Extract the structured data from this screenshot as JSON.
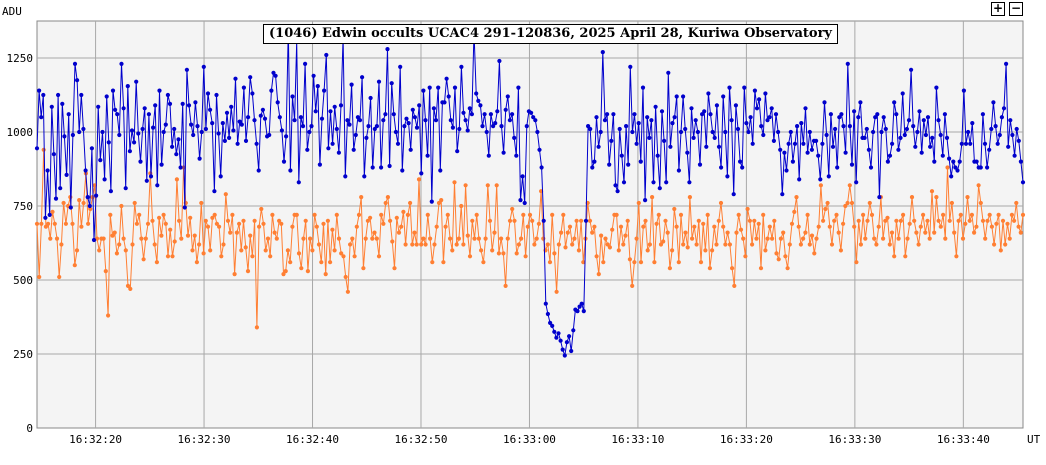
{
  "controls": {
    "zoom_in": "+",
    "zoom_out": "−"
  },
  "chart_data": {
    "type": "line",
    "title": "(1046) Edwin occults UCAC4 291-120836, 2025 April 28, Kuriwa Observatory",
    "ylabel": "ADU",
    "xlabel": "UT",
    "ylim": [
      0,
      1375
    ],
    "yticks": [
      0,
      250,
      500,
      750,
      1000,
      1250
    ],
    "x_start": "16:32:14.6",
    "x_end": "16:33:45.5",
    "xticks": [
      "16:32:20",
      "16:32:30",
      "16:32:40",
      "16:32:50",
      "16:33:00",
      "16:33:10",
      "16:33:20",
      "16:33:30",
      "16:33:40"
    ],
    "grid": true,
    "series": [
      {
        "name": "",
        "color": "#0000cc",
        "values": [
          945,
          1140,
          1050,
          1125,
          710,
          870,
          720,
          1085,
          925,
          775,
          1125,
          810,
          1095,
          985,
          855,
          1060,
          745,
          990,
          1230,
          1175,
          1000,
          1125,
          1010,
          870,
          780,
          750,
          945,
          635,
          785,
          1085,
          905,
          1000,
          840,
          1120,
          965,
          800,
          1140,
          1075,
          1060,
          990,
          1230,
          1080,
          810,
          1155,
          935,
          1005,
          965,
          1170,
          995,
          900,
          1010,
          1080,
          835,
          1060,
          850,
          1015,
          1090,
          820,
          1140,
          890,
          1000,
          1025,
          1125,
          1095,
          950,
          1010,
          925,
          975,
          880,
          1095,
          745,
          1210,
          1090,
          1025,
          990,
          1100,
          1020,
          910,
          1000,
          1220,
          1010,
          1130,
          1075,
          1030,
          800,
          1125,
          995,
          850,
          1030,
          970,
          1065,
          980,
          1085,
          1005,
          1180,
          960,
          1035,
          1025,
          1150,
          970,
          1050,
          1185,
          1130,
          1040,
          960,
          870,
          1055,
          1075,
          1045,
          985,
          990,
          1140,
          1200,
          1190,
          1100,
          1050,
          1005,
          900,
          985,
          1350,
          870,
          1120,
          1040,
          1305,
          830,
          1050,
          1020,
          1230,
          940,
          1000,
          1020,
          1190,
          1070,
          1155,
          890,
          1045,
          1140,
          1260,
          945,
          1070,
          960,
          1085,
          1010,
          930,
          1090,
          1320,
          850,
          1040,
          1025,
          1160,
          940,
          990,
          1050,
          1040,
          1185,
          850,
          980,
          1020,
          1115,
          880,
          1010,
          1020,
          1170,
          880,
          1040,
          1060,
          1280,
          885,
          1165,
          1060,
          1000,
          960,
          1220,
          870,
          1020,
          1045,
          1030,
          940,
          1075,
          1050,
          1015,
          1090,
          860,
          1140,
          1040,
          920,
          1150,
          765,
          1080,
          1040,
          1150,
          870,
          1100,
          1100,
          1180,
          1120,
          1040,
          1015,
          1150,
          935,
          1010,
          1220,
          1065,
          1040,
          1005,
          1080,
          1060,
          1340,
          1130,
          1105,
          1090,
          1020,
          1060,
          1000,
          920,
          1060,
          1020,
          1030,
          1070,
          1240,
          1020,
          930,
          1075,
          1120,
          1040,
          1060,
          980,
          920,
          1150,
          770,
          850,
          760,
          1020,
          1070,
          1065,
          1050,
          1040,
          1000,
          940,
          880,
          700,
          420,
          385,
          355,
          345,
          325,
          305,
          320,
          295,
          265,
          245,
          290,
          310,
          260,
          330,
          400,
          395,
          410,
          420,
          395,
          700,
          1020,
          1010,
          880,
          900,
          1050,
          950,
          1000,
          1270,
          1040,
          1060,
          890,
          970,
          1060,
          820,
          800,
          1010,
          920,
          830,
          1020,
          890,
          1220,
          1000,
          1060,
          960,
          1030,
          900,
          1150,
          770,
          1050,
          980,
          1040,
          830,
          1085,
          920,
          810,
          1070,
          970,
          830,
          1200,
          950,
          1030,
          1050,
          1120,
          870,
          1000,
          1120,
          1010,
          930,
          830,
          1080,
          980,
          1040,
          1000,
          890,
          1060,
          1070,
          950,
          1130,
          1060,
          1000,
          980,
          1090,
          950,
          880,
          1120,
          1000,
          850,
          1150,
          1040,
          790,
          1090,
          1010,
          900,
          880,
          1150,
          1030,
          1000,
          1050,
          960,
          1140,
          1080,
          1110,
          1020,
          990,
          1130,
          1040,
          1050,
          1080,
          970,
          1060,
          1000,
          940,
          790,
          930,
          870,
          960,
          1000,
          900,
          960,
          1020,
          840,
          1030,
          960,
          1080,
          930,
          1000,
          940,
          970,
          970,
          920,
          840,
          960,
          1100,
          990,
          850,
          1060,
          950,
          1010,
          880,
          1050,
          1060,
          1020,
          930,
          1230,
          1020,
          890,
          1070,
          830,
          1050,
          1100,
          980,
          980,
          1010,
          940,
          880,
          1000,
          1050,
          1060,
          780,
          1000,
          1050,
          1010,
          900,
          920,
          960,
          1100,
          1060,
          940,
          980,
          1130,
          990,
          1010,
          1040,
          1210,
          1020,
          950,
          1000,
          1070,
          930,
          1040,
          990,
          1050,
          950,
          980,
          900,
          1150,
          1040,
          990,
          920,
          1060,
          980,
          910,
          850,
          900,
          880,
          870,
          900,
          960,
          1140,
          960,
          1000,
          960,
          1030,
          900,
          900,
          880,
          880,
          1060,
          960,
          880,
          940,
          1010,
          1100,
          1020,
          960,
          990,
          1050,
          1080,
          1230,
          950,
          1040,
          990,
          920,
          1010,
          970,
          900,
          830
        ]
      },
      {
        "name": "",
        "color": "#ff7f33",
        "values": [
          690,
          510,
          690,
          940,
          680,
          690,
          640,
          730,
          690,
          640,
          510,
          620,
          760,
          690,
          750,
          780,
          690,
          550,
          600,
          770,
          680,
          760,
          860,
          690,
          740,
          780,
          820,
          640,
          600,
          640,
          640,
          530,
          380,
          720,
          650,
          660,
          590,
          620,
          750,
          640,
          600,
          480,
          470,
          620,
          760,
          690,
          720,
          640,
          570,
          640,
          690,
          860,
          700,
          620,
          560,
          710,
          650,
          720,
          690,
          580,
          670,
          580,
          630,
          840,
          700,
          640,
          880,
          760,
          650,
          710,
          600,
          650,
          560,
          620,
          760,
          590,
          700,
          680,
          600,
          710,
          720,
          690,
          680,
          580,
          620,
          790,
          700,
          660,
          720,
          520,
          660,
          690,
          600,
          700,
          610,
          530,
          650,
          580,
          700,
          340,
          680,
          740,
          690,
          600,
          640,
          580,
          720,
          660,
          640,
          700,
          690,
          520,
          530,
          600,
          560,
          680,
          720,
          720,
          590,
          540,
          640,
          700,
          530,
          640,
          600,
          720,
          680,
          620,
          560,
          690,
          520,
          700,
          560,
          670,
          600,
          720,
          640,
          590,
          580,
          510,
          460,
          620,
          640,
          580,
          680,
          720,
          780,
          540,
          640,
          700,
          710,
          640,
          660,
          640,
          580,
          720,
          690,
          760,
          780,
          700,
          630,
          540,
          710,
          660,
          680,
          730,
          620,
          720,
          760,
          620,
          660,
          620,
          840,
          620,
          640,
          620,
          720,
          640,
          560,
          620,
          680,
          760,
          770,
          560,
          680,
          720,
          640,
          600,
          830,
          620,
          640,
          750,
          620,
          820,
          650,
          580,
          700,
          640,
          720,
          640,
          600,
          560,
          640,
          820,
          700,
          600,
          660,
          820,
          590,
          640,
          590,
          480,
          640,
          700,
          740,
          700,
          590,
          620,
          640,
          720,
          580,
          680,
          720,
          700,
          620,
          640,
          690,
          800,
          640,
          600,
          620,
          560,
          720,
          590,
          460,
          620,
          660,
          720,
          610,
          660,
          680,
          620,
          640,
          700,
          600,
          700,
          560,
          640,
          760,
          700,
          660,
          680,
          580,
          520,
          650,
          560,
          640,
          620,
          610,
          670,
          720,
          720,
          600,
          680,
          620,
          650,
          700,
          570,
          480,
          560,
          640,
          760,
          560,
          680,
          700,
          600,
          620,
          780,
          560,
          690,
          720,
          620,
          630,
          700,
          660,
          540,
          600,
          740,
          680,
          560,
          720,
          620,
          660,
          610,
          780,
          640,
          680,
          620,
          700,
          560,
          690,
          600,
          720,
          540,
          600,
          680,
          620,
          700,
          760,
          680,
          620,
          660,
          620,
          540,
          480,
          660,
          720,
          670,
          640,
          580,
          740,
          700,
          620,
          700,
          640,
          690,
          540,
          720,
          600,
          640,
          680,
          640,
          700,
          590,
          570,
          640,
          660,
          580,
          540,
          620,
          690,
          730,
          780,
          680,
          620,
          640,
          660,
          720,
          620,
          650,
          590,
          640,
          680,
          820,
          700,
          740,
          760,
          680,
          620,
          700,
          720,
          660,
          600,
          690,
          750,
          760,
          820,
          760,
          680,
          560,
          700,
          620,
          720,
          640,
          700,
          760,
          720,
          640,
          620,
          680,
          780,
          640,
          700,
          710,
          620,
          660,
          580,
          700,
          640,
          700,
          720,
          580,
          640,
          690,
          780,
          700,
          660,
          620,
          680,
          720,
          660,
          700,
          640,
          800,
          660,
          780,
          700,
          680,
          720,
          640,
          880,
          700,
          760,
          660,
          580,
          700,
          720,
          640,
          690,
          780,
          700,
          720,
          660,
          680,
          820,
          760,
          700,
          640,
          700,
          720,
          680,
          620,
          690,
          720,
          600,
          700,
          620,
          690,
          640,
          720,
          700,
          760,
          680,
          660,
          720
        ]
      }
    ]
  }
}
